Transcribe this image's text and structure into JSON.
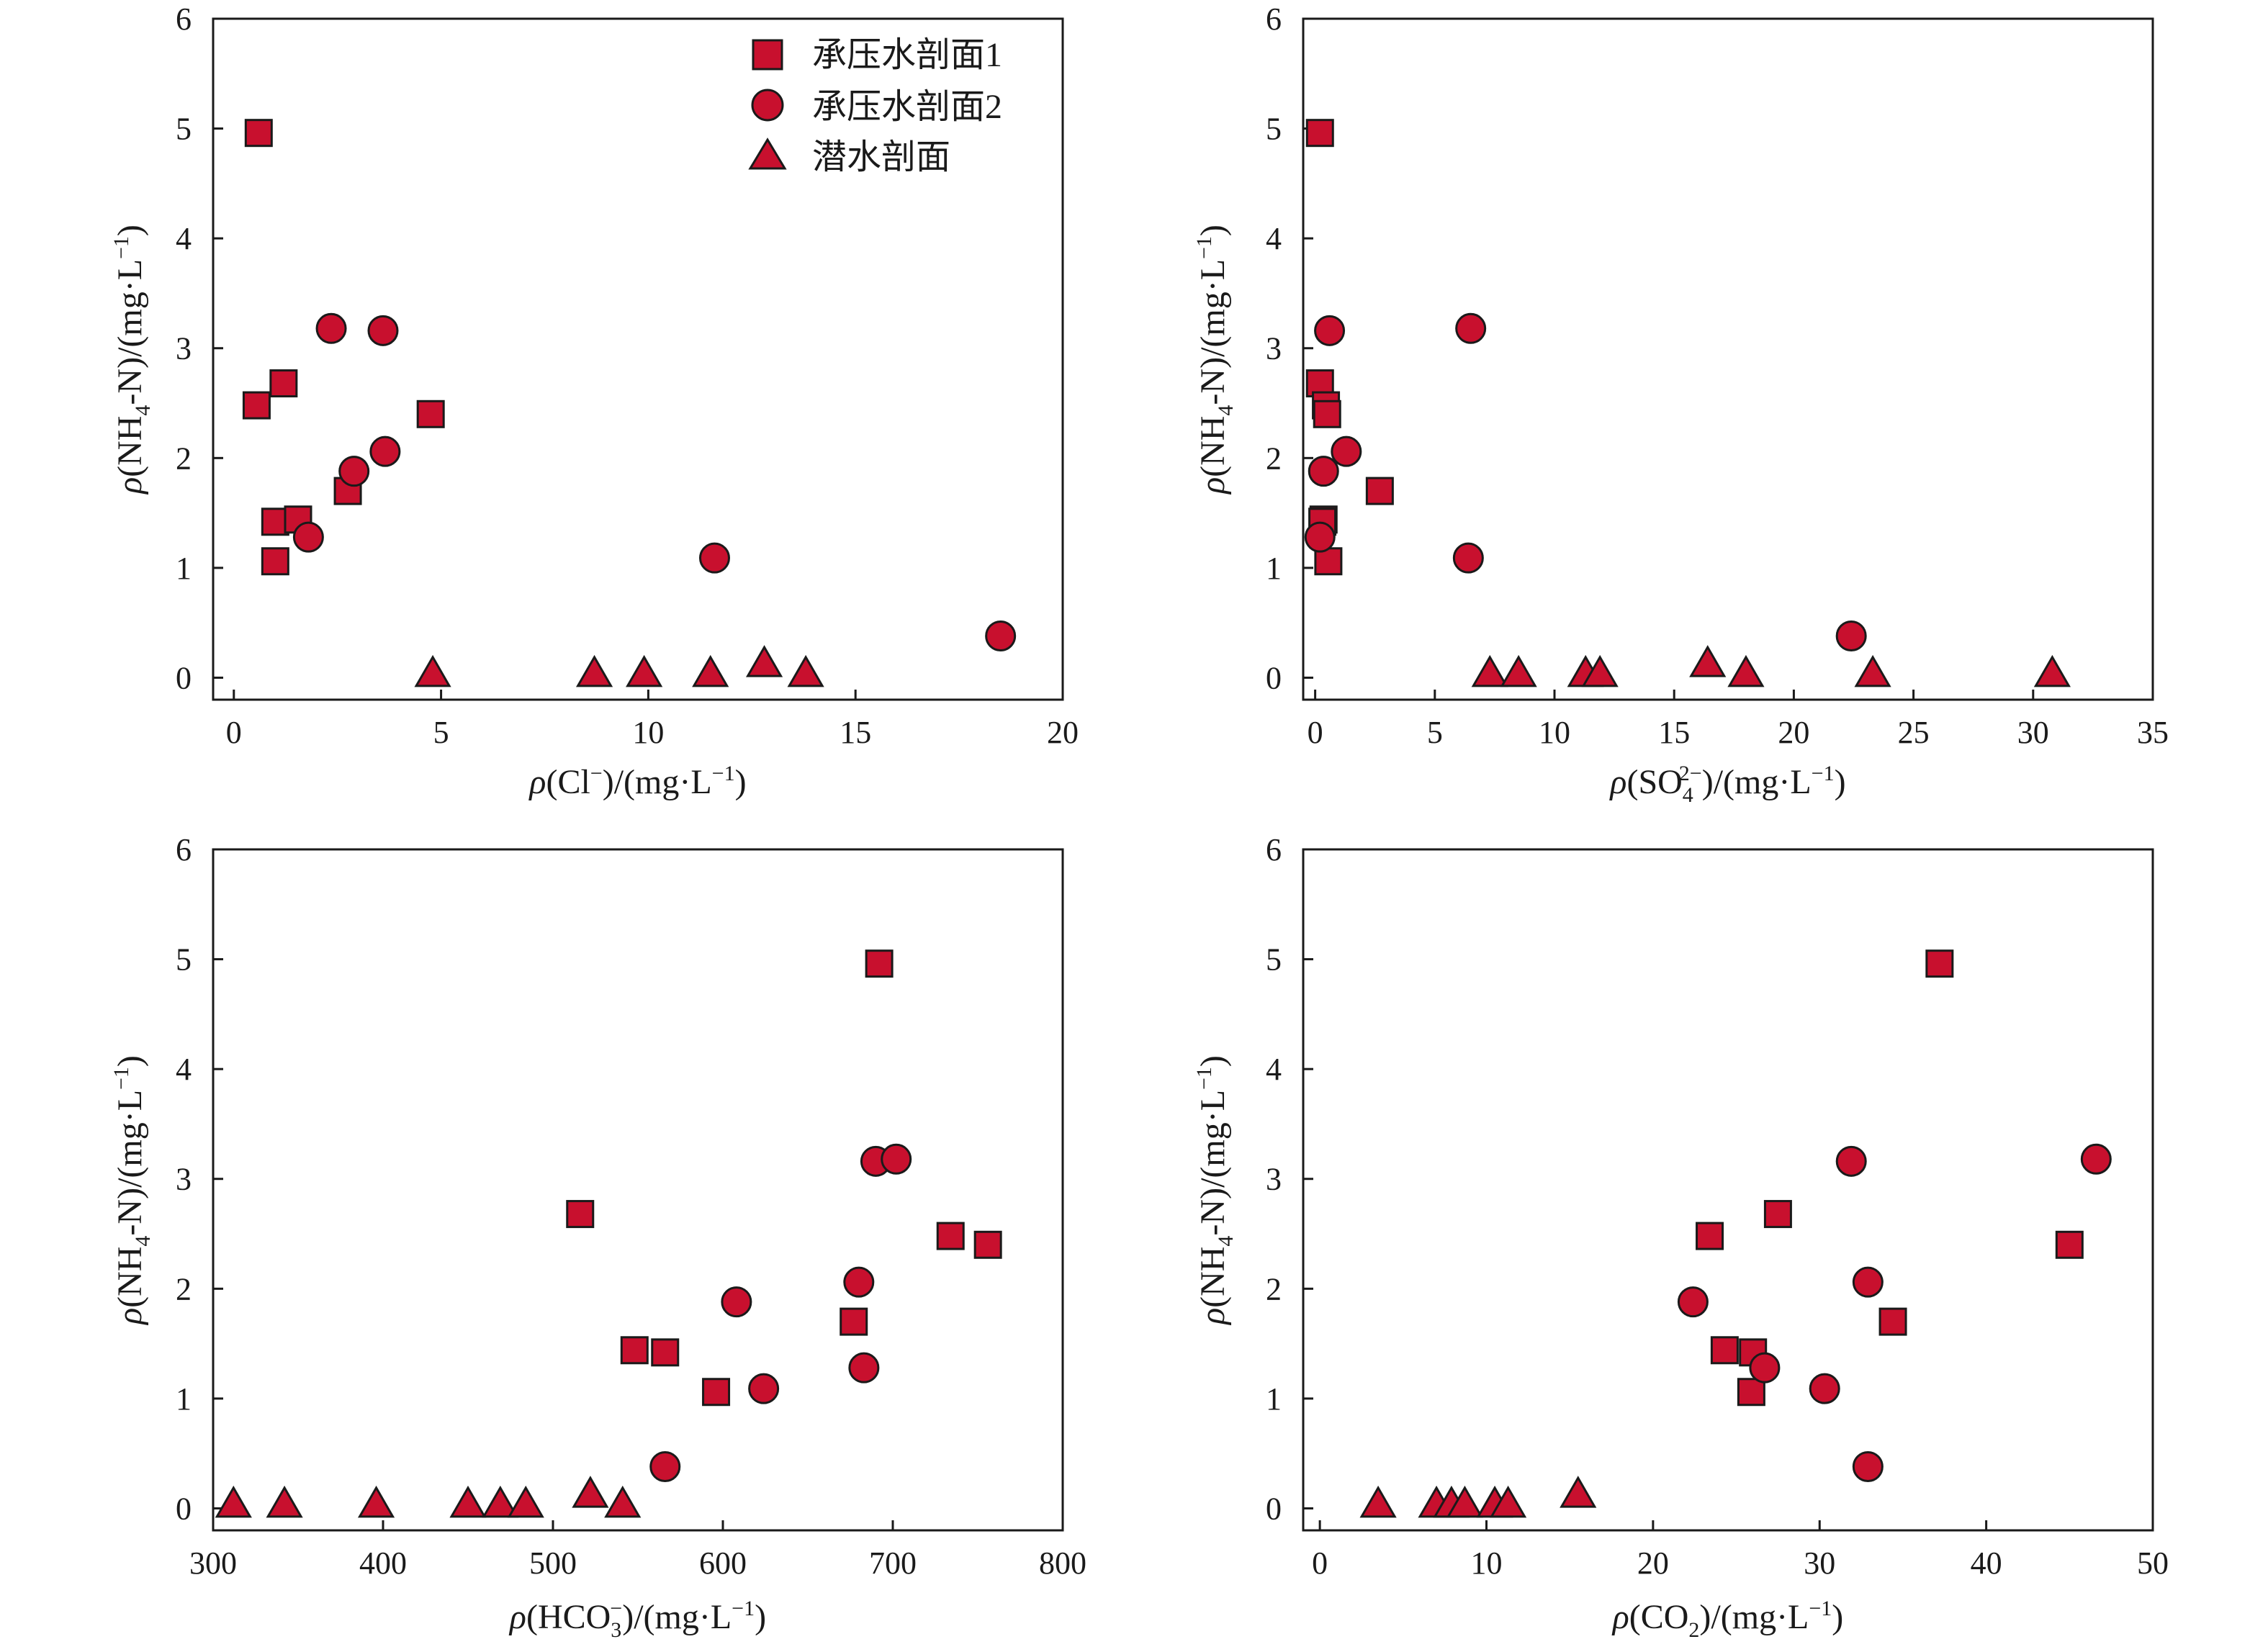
{
  "legend": {
    "items": [
      {
        "label": "承压水剖面1",
        "marker": "square"
      },
      {
        "label": "承压水剖面2",
        "marker": "circle"
      },
      {
        "label": "潜水剖面",
        "marker": "triangle"
      }
    ]
  },
  "labels": {
    "ylabel": {
      "rho": "ρ",
      "a": "(NH",
      "sub": "4",
      "b": "-N)/(mg·L",
      "sup": "−1",
      "c": ")"
    },
    "cl": {
      "rho": "ρ",
      "a": "(Cl",
      "sup": "−",
      "b": ")/(mg·L",
      "sup2": "−1",
      "c": ")"
    },
    "so4": {
      "rho": "ρ",
      "a": "(SO",
      "sup": "2−",
      "sub": "4",
      "b": ")/(mg·L",
      "sup2": "−1",
      "c": ")"
    },
    "hco3": {
      "rho": "ρ",
      "a": "(HCO",
      "sup": "−",
      "sub": "3",
      "b": ")/(mg·L",
      "sup2": "−1",
      "c": ")"
    },
    "co2": {
      "rho": "ρ",
      "a": "(CO",
      "sub": "2",
      "b": ")/(mg·L",
      "sup2": "−1",
      "c": ")"
    }
  },
  "style": {
    "marker_fill": "#c8102e",
    "marker_stroke": "#1a1a1a",
    "axis_color": "#1a1a1a"
  },
  "chart_data": [
    {
      "type": "scatter",
      "panel": "top-left",
      "xlim": [
        -0.5,
        20
      ],
      "ylim": [
        -0.2,
        6
      ],
      "xticks": [
        0,
        5,
        10,
        15,
        20
      ],
      "yticks": [
        0,
        1,
        2,
        3,
        4,
        5,
        6
      ],
      "grid": false,
      "legend": "top-right",
      "series": [
        {
          "name": "承压水剖面1",
          "marker": "square",
          "x": [
            0.6,
            0.55,
            1.2,
            1.0,
            1.55,
            1.0,
            2.75,
            4.75
          ],
          "y": [
            4.96,
            2.48,
            2.68,
            1.42,
            1.44,
            1.06,
            1.7,
            2.4
          ]
        },
        {
          "name": "承压水剖面2",
          "marker": "circle",
          "x": [
            2.35,
            3.6,
            2.9,
            3.65,
            1.8,
            11.6,
            18.5
          ],
          "y": [
            3.18,
            3.16,
            1.88,
            2.06,
            1.28,
            1.09,
            0.38
          ]
        },
        {
          "name": "潜水剖面",
          "marker": "triangle",
          "x": [
            4.8,
            8.7,
            9.9,
            11.5,
            12.8,
            13.8
          ],
          "y": [
            0.03,
            0.03,
            0.03,
            0.03,
            0.12,
            0.03
          ]
        }
      ]
    },
    {
      "type": "scatter",
      "panel": "top-right",
      "xlim": [
        -0.5,
        35
      ],
      "ylim": [
        -0.2,
        6
      ],
      "xticks": [
        0,
        5,
        10,
        15,
        20,
        25,
        30,
        35
      ],
      "yticks": [
        0,
        1,
        2,
        3,
        4,
        5,
        6
      ],
      "grid": false,
      "series": [
        {
          "name": "承压水剖面1",
          "marker": "square",
          "x": [
            0.2,
            0.2,
            0.45,
            0.5,
            0.35,
            0.3,
            0.55,
            2.7
          ],
          "y": [
            4.96,
            2.68,
            2.48,
            2.4,
            1.44,
            1.42,
            1.06,
            1.7
          ]
        },
        {
          "name": "承压水剖面2",
          "marker": "circle",
          "x": [
            0.6,
            6.5,
            0.35,
            1.3,
            0.2,
            6.4,
            22.4
          ],
          "y": [
            3.16,
            3.18,
            1.88,
            2.06,
            1.28,
            1.09,
            0.38
          ]
        },
        {
          "name": "潜水剖面",
          "marker": "triangle",
          "x": [
            7.3,
            8.5,
            11.3,
            11.9,
            16.4,
            18.0,
            23.3,
            30.8
          ],
          "y": [
            0.03,
            0.03,
            0.03,
            0.03,
            0.12,
            0.03,
            0.03,
            0.03
          ]
        }
      ]
    },
    {
      "type": "scatter",
      "panel": "bottom-left",
      "xlim": [
        300,
        800
      ],
      "ylim": [
        -0.2,
        6
      ],
      "xticks": [
        300,
        400,
        500,
        600,
        700,
        800
      ],
      "yticks": [
        0,
        1,
        2,
        3,
        4,
        5,
        6
      ],
      "grid": false,
      "series": [
        {
          "name": "承压水剖面1",
          "marker": "square",
          "x": [
            692,
            516,
            734,
            756,
            548,
            566,
            596,
            677
          ],
          "y": [
            4.96,
            2.68,
            2.48,
            2.4,
            1.44,
            1.42,
            1.06,
            1.7
          ]
        },
        {
          "name": "承压水剖面2",
          "marker": "circle",
          "x": [
            690,
            702,
            680,
            608,
            683,
            624,
            566
          ],
          "y": [
            3.16,
            3.18,
            2.06,
            1.88,
            1.28,
            1.09,
            0.38
          ]
        },
        {
          "name": "潜水剖面",
          "marker": "triangle",
          "x": [
            312,
            342,
            396,
            450,
            469,
            484,
            522,
            541
          ],
          "y": [
            0.03,
            0.03,
            0.03,
            0.03,
            0.03,
            0.03,
            0.12,
            0.03
          ]
        }
      ]
    },
    {
      "type": "scatter",
      "panel": "bottom-right",
      "xlim": [
        -1,
        50
      ],
      "ylim": [
        -0.2,
        6
      ],
      "xticks": [
        0,
        10,
        20,
        30,
        40,
        50
      ],
      "yticks": [
        0,
        1,
        2,
        3,
        4,
        5,
        6
      ],
      "grid": false,
      "series": [
        {
          "name": "承压水剖面1",
          "marker": "square",
          "x": [
            37.2,
            27.5,
            23.4,
            45.0,
            24.3,
            26.0,
            25.9,
            34.4
          ],
          "y": [
            4.96,
            2.68,
            2.48,
            2.4,
            1.44,
            1.42,
            1.06,
            1.7
          ]
        },
        {
          "name": "承压水剖面2",
          "marker": "circle",
          "x": [
            31.9,
            46.6,
            32.9,
            22.4,
            26.7,
            30.3,
            32.9
          ],
          "y": [
            3.16,
            3.18,
            2.06,
            1.88,
            1.28,
            1.09,
            0.38
          ]
        },
        {
          "name": "潜水剖面",
          "marker": "triangle",
          "x": [
            3.5,
            7.0,
            7.9,
            8.7,
            10.5,
            11.3,
            15.5
          ],
          "y": [
            0.03,
            0.03,
            0.03,
            0.03,
            0.03,
            0.03,
            0.12
          ]
        }
      ]
    }
  ]
}
